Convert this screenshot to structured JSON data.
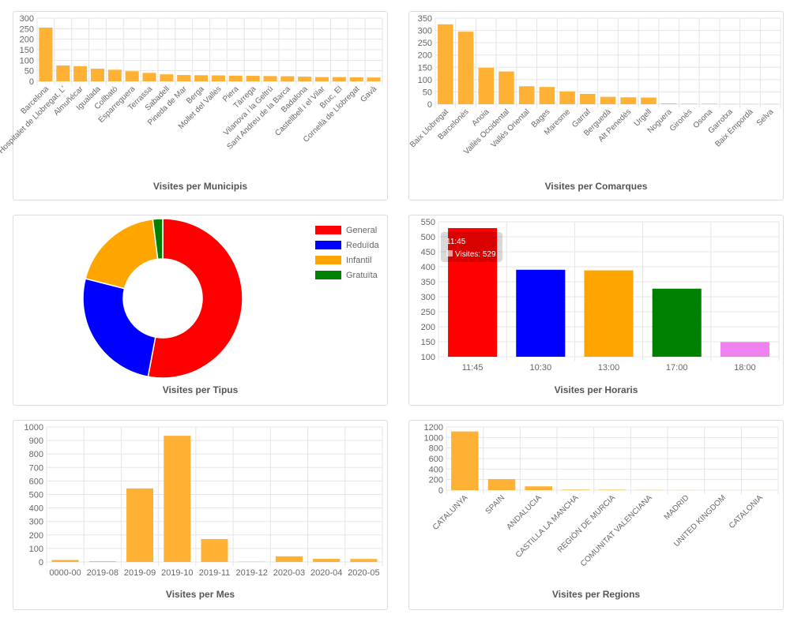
{
  "colors": {
    "bar": "#feb135",
    "grid": "#e5e5e5",
    "tick": "#666666",
    "tooltip_bg": "rgba(0,0,0,0.15)",
    "tooltip_text": "#ffffff"
  },
  "cards": {
    "municipis": {
      "title": "Visites per Municipis"
    },
    "comarques": {
      "title": "Visites per Comarques"
    },
    "tipus": {
      "title": "Visites per Tipus"
    },
    "horaris": {
      "title": "Visites per Horaris"
    },
    "mes": {
      "title": "Visites per Mes"
    },
    "regions": {
      "title": "Visites per Regions"
    }
  },
  "tooltip": {
    "title": "11:45",
    "body": "Visites: 529"
  },
  "chart_data": [
    {
      "id": "municipis",
      "type": "bar",
      "title": "Visites per Municipis",
      "categories": [
        "Barcelona",
        "Hospitalet de Llobregat, L'",
        "Almuñécar",
        "Igualada",
        "Collbató",
        "Esparreguera",
        "Terrassa",
        "Sabadell",
        "Pineda de Mar",
        "Berga",
        "Mollet del Vallès",
        "Piera",
        "Tàrrega",
        "Vilanova i la Geltrú",
        "Sant Andreu de la Barca",
        "Badalona",
        "Castellbell i el Vilar",
        "Bruc, El",
        "Cornellà de Llobregat",
        "Gavà"
      ],
      "values": [
        255,
        75,
        72,
        60,
        55,
        48,
        40,
        33,
        30,
        29,
        28,
        27,
        26,
        25,
        24,
        22,
        20,
        20,
        19,
        18
      ],
      "ylim": [
        0,
        300
      ],
      "yticks": [
        0,
        50,
        100,
        150,
        200,
        250,
        300
      ],
      "grid": true
    },
    {
      "id": "comarques",
      "type": "bar",
      "title": "Visites per Comarques",
      "categories": [
        "Baix Llobregat",
        "Barcelonès",
        "Anoia",
        "Vallès Occidental",
        "Vallès Oriental",
        "Bages",
        "Maresme",
        "Garraf",
        "Berguedà",
        "Alt Penedès",
        "Urgell",
        "Noguera",
        "Gironès",
        "Osona",
        "Garrotxa",
        "Baix Empordà",
        "Selva"
      ],
      "values": [
        325,
        295,
        148,
        133,
        73,
        70,
        52,
        42,
        30,
        28,
        27,
        3,
        2,
        2,
        1,
        1,
        1
      ],
      "ylim": [
        0,
        350
      ],
      "yticks": [
        0,
        50,
        100,
        150,
        200,
        250,
        300,
        350
      ],
      "grid": true
    },
    {
      "id": "tipus",
      "type": "pie",
      "title": "Visites per Tipus",
      "categories": [
        "General",
        "Reduïda",
        "Infantil",
        "Gratuïta"
      ],
      "values": [
        529,
        260,
        190,
        20
      ],
      "colors": [
        "#ff0000",
        "#0000ff",
        "#ffa500",
        "#008000"
      ],
      "legend": "top-right"
    },
    {
      "id": "horaris",
      "type": "bar",
      "title": "Visites per Horaris",
      "categories": [
        "11:45",
        "10:30",
        "13:00",
        "17:00",
        "18:00"
      ],
      "values": [
        529,
        390,
        388,
        327,
        149
      ],
      "colors": [
        "#ff0000",
        "#0000ff",
        "#ffa500",
        "#008000",
        "#ee82ee"
      ],
      "ylim": [
        100,
        550
      ],
      "yticks": [
        100,
        150,
        200,
        250,
        300,
        350,
        400,
        450,
        500,
        550
      ],
      "grid": true
    },
    {
      "id": "mes",
      "type": "bar",
      "title": "Visites per Mes",
      "categories": [
        "0000-00",
        "2019-08",
        "2019-09",
        "2019-10",
        "2019-11",
        "2019-12",
        "2020-03",
        "2020-04",
        "2020-05"
      ],
      "values": [
        15,
        5,
        545,
        935,
        170,
        2,
        42,
        23,
        22
      ],
      "ylim": [
        0,
        1000
      ],
      "yticks": [
        0,
        100,
        200,
        300,
        400,
        500,
        600,
        700,
        800,
        900,
        1000
      ],
      "grid": true
    },
    {
      "id": "regions",
      "type": "bar",
      "title": "Visites per Regions",
      "categories": [
        "CATALUNYA",
        "SPAIN",
        "ANDALUCIA",
        "CASTILLA LA MANCHA",
        "REGIÓN DE MURCIA",
        "COMUNITAT VALENCIANA",
        "MADRID",
        "UNITED KINGDOM",
        "CATALONIA"
      ],
      "values": [
        1115,
        210,
        72,
        10,
        8,
        3,
        2,
        1,
        1
      ],
      "ylim": [
        0,
        1200
      ],
      "yticks": [
        0,
        200,
        400,
        600,
        800,
        1000,
        1200
      ],
      "grid": true
    }
  ]
}
